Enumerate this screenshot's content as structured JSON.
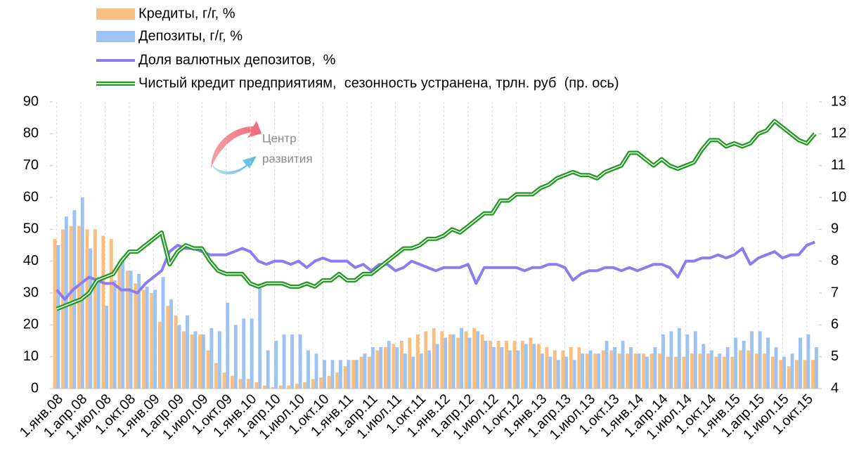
{
  "chart_data": {
    "type": "bar-line",
    "categories": [
      "1.янв.08",
      null,
      null,
      "1.апр.08",
      null,
      null,
      "1.июл.08",
      null,
      null,
      "1.окт.08",
      null,
      null,
      "1.янв.09",
      null,
      null,
      "1.апр.09",
      null,
      null,
      "1.июл.09",
      null,
      null,
      "1.окт.09",
      null,
      null,
      "1.янв.10",
      null,
      null,
      "1.апр.10",
      null,
      null,
      "1.июл.10",
      null,
      null,
      "1.окт.10",
      null,
      null,
      "1.янв.11",
      null,
      null,
      "1.апр.11",
      null,
      null,
      "1.июл.11",
      null,
      null,
      "1.окт.11",
      null,
      null,
      "1.янв.12",
      null,
      null,
      "1.апр.12",
      null,
      null,
      "1.июл.12",
      null,
      null,
      "1.окт.12",
      null,
      null,
      "1.янв.13",
      null,
      null,
      "1.апр.13",
      null,
      null,
      "1.июл.13",
      null,
      null,
      "1.окт.13",
      null,
      null,
      "1.янв.14",
      null,
      null,
      "1.апр.14",
      null,
      null,
      "1.июл.14",
      null,
      null,
      "1.окт.14",
      null,
      null,
      "1.янв.15",
      null,
      null,
      "1.апр.15",
      null,
      null,
      "1.июл.15",
      null,
      null,
      "1.окт.15",
      null
    ],
    "series": [
      {
        "name": "Кредиты, г/г, %",
        "kind": "bar",
        "color": "#f9bf80",
        "values": [
          47,
          50,
          51,
          51,
          50,
          50,
          48,
          47,
          40,
          37,
          33,
          31,
          30,
          21,
          26,
          23,
          18,
          17,
          17,
          12,
          8,
          5,
          4,
          3,
          3,
          2,
          1,
          0.5,
          1,
          1,
          1.5,
          2,
          3,
          3.5,
          4,
          5,
          7,
          9,
          10,
          10,
          12,
          13,
          14,
          15,
          16,
          17,
          18,
          19,
          18,
          17,
          16,
          18,
          19,
          17,
          15,
          15,
          15,
          15,
          15,
          16,
          14,
          13,
          12,
          12,
          13,
          13,
          11,
          11,
          12,
          12,
          11,
          11,
          11,
          11,
          11,
          11,
          10,
          10,
          10,
          11,
          11,
          11,
          10,
          10,
          10,
          12,
          12,
          11,
          11,
          10,
          9,
          7,
          9,
          9,
          9
        ]
      },
      {
        "name": "Депозиты, г/г, %",
        "kind": "bar",
        "color": "#9dc3f5",
        "values": [
          45,
          54,
          56,
          60,
          44,
          35,
          26,
          34,
          40,
          37,
          36,
          32,
          31,
          35,
          28,
          20,
          23,
          18,
          17,
          19,
          18,
          27,
          20,
          22,
          22,
          33,
          12,
          15,
          17,
          17,
          17,
          12,
          11,
          9,
          9,
          9,
          9,
          9,
          11,
          13,
          13,
          15,
          13,
          11,
          10,
          11,
          12,
          14,
          16,
          17,
          19,
          16,
          18,
          15,
          13,
          13,
          12,
          12,
          14,
          14,
          11,
          10,
          9,
          10,
          9,
          11,
          12,
          11,
          15,
          13,
          15,
          13,
          11,
          10,
          13,
          17,
          18,
          19,
          17,
          18,
          14,
          12,
          11,
          13,
          16,
          15,
          18,
          18,
          16,
          13,
          10,
          11,
          16,
          17,
          13
        ]
      },
      {
        "name": "Доля валютных депозитов,  %",
        "kind": "line",
        "color": "#8b7cf0",
        "values": [
          31,
          28,
          31,
          33,
          35,
          34,
          33,
          33,
          31,
          31,
          30,
          33,
          35,
          37,
          43,
          45,
          44,
          44,
          43,
          42,
          42,
          42,
          43,
          44,
          43,
          40,
          39,
          40,
          40,
          39,
          40,
          38,
          40,
          41,
          40,
          40,
          40,
          38,
          39,
          37,
          39,
          39,
          37,
          38,
          40,
          39,
          38,
          37,
          38,
          38,
          38,
          39,
          33,
          38,
          38,
          38,
          38,
          38,
          37,
          38,
          38,
          39,
          39,
          38,
          34,
          36,
          37,
          37,
          38,
          38,
          37,
          38,
          37,
          38,
          39,
          39,
          38,
          35,
          40,
          40,
          41,
          41,
          42,
          41,
          42,
          44,
          39,
          41,
          42,
          43,
          41,
          42,
          42,
          45,
          46
        ]
      },
      {
        "name": "Чистый кредит предприятиям,  сезонность устранена, трлн. руб  (пр. ось)",
        "kind": "line2",
        "axis": "y2",
        "color": "#1e9a1e",
        "values": [
          6.5,
          6.6,
          6.7,
          6.8,
          7.0,
          7.4,
          7.5,
          7.6,
          8.0,
          8.3,
          8.3,
          8.5,
          8.7,
          8.9,
          7.9,
          8.3,
          8.5,
          8.4,
          8.4,
          8.0,
          7.7,
          7.6,
          7.6,
          7.6,
          7.3,
          7.2,
          7.3,
          7.3,
          7.3,
          7.2,
          7.2,
          7.3,
          7.2,
          7.4,
          7.4,
          7.6,
          7.4,
          7.4,
          7.6,
          7.6,
          7.8,
          8.0,
          8.2,
          8.4,
          8.4,
          8.5,
          8.7,
          8.7,
          8.8,
          9.0,
          8.9,
          9.1,
          9.3,
          9.5,
          9.5,
          9.9,
          9.9,
          10.1,
          10.1,
          10.1,
          10.3,
          10.4,
          10.6,
          10.7,
          10.8,
          10.7,
          10.7,
          10.6,
          10.8,
          10.9,
          11.0,
          11.4,
          11.4,
          11.2,
          11.0,
          11.2,
          11.0,
          10.9,
          11.0,
          11.1,
          11.5,
          11.8,
          11.8,
          11.6,
          11.7,
          11.6,
          11.7,
          12.0,
          12.1,
          12.4,
          12.2,
          12.0,
          11.8,
          11.7,
          12.0
        ]
      }
    ],
    "ylim": [
      0,
      90
    ],
    "yticks": [
      0,
      10,
      20,
      30,
      40,
      50,
      60,
      70,
      80,
      90
    ],
    "y2lim": [
      4,
      13
    ],
    "y2ticks": [
      4,
      5,
      6,
      7,
      8,
      9,
      10,
      11,
      12,
      13
    ],
    "grid": "x",
    "legend": "top",
    "logo": {
      "line1": "Центр",
      "line2": "развития"
    }
  }
}
